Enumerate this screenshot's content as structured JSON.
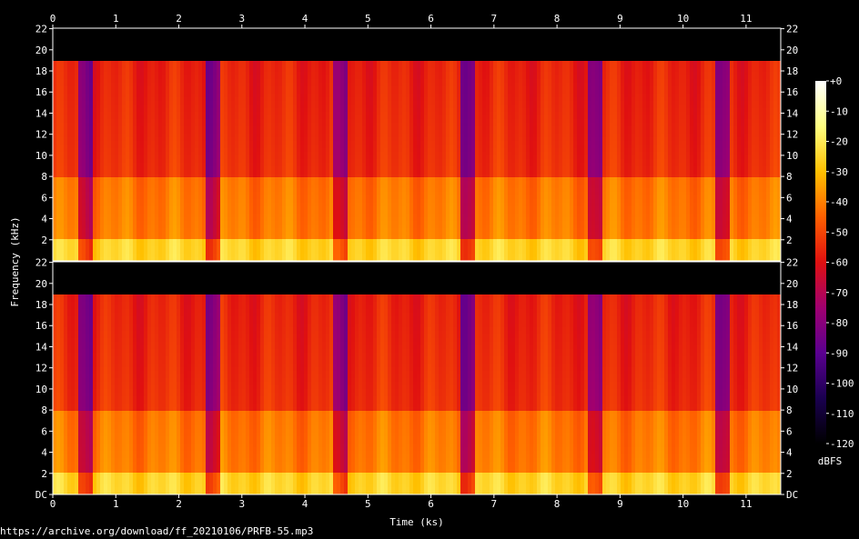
{
  "chart_data": {
    "type": "heatmap",
    "description_axes": {
      "xlabel": "Time (ks)",
      "ylabel": "Frequency (kHz)",
      "xlim": [
        0,
        11.55
      ],
      "ylim": [
        0,
        22.05
      ]
    },
    "x_ticks": [
      "0",
      "1",
      "2",
      "3",
      "4",
      "5",
      "6",
      "7",
      "8",
      "9",
      "10",
      "11"
    ],
    "y_ticks": [
      "22",
      "20",
      "18",
      "16",
      "14",
      "12",
      "10",
      "8",
      "6",
      "4",
      "2"
    ],
    "y_ticks_bottom": [
      "22",
      "20",
      "18",
      "16",
      "14",
      "12",
      "10",
      "8",
      "6",
      "4",
      "2",
      "DC"
    ],
    "channels": 2,
    "colorbar": {
      "label": "dBFS",
      "ticks": [
        "+0",
        "-10",
        "-20",
        "-30",
        "-40",
        "-50",
        "-60",
        "-70",
        "-80",
        "-90",
        "-100",
        "-110",
        "-120"
      ],
      "range": [
        -120,
        0
      ],
      "colors": [
        "#000000",
        "#1a0050",
        "#5a0090",
        "#a00070",
        "#e01010",
        "#ff6000",
        "#ffc000",
        "#ffff80",
        "#ffffff"
      ]
    },
    "lowpass_cutoff_khz": 19,
    "approx_level_dbfs": {
      "low_band_0_2khz": -25,
      "mid_band_2_8khz": -40,
      "high_band_8_18khz": -52,
      "above_cutoff": -120
    }
  },
  "source_url": "https://archive.org/download/ff_20210106/PRFB-55.mp3"
}
